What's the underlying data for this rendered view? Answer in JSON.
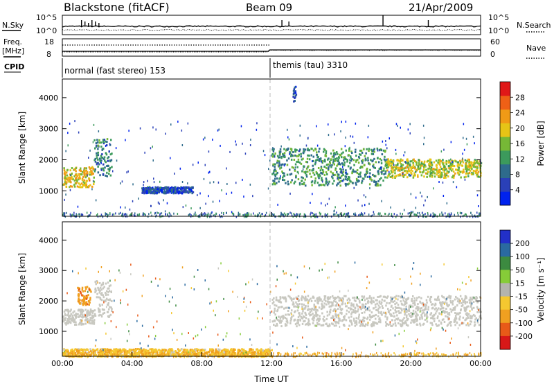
{
  "header": {
    "title": "Blackstone (fitACF)",
    "beam": "Beam 09",
    "date": "21/Apr/2009"
  },
  "labels": {
    "nsky": "N.Sky",
    "nsearch": "N.Search",
    "freq": "Freq.",
    "freq_unit": "[MHz]",
    "nave": "Nave",
    "cpid": "CPID"
  },
  "cpid_segments": [
    {
      "label": "normal (fast stereo) 153",
      "start_h": 0,
      "end_h": 11.9
    },
    {
      "label": "themis (tau) 3310",
      "start_h": 11.9,
      "end_h": 24
    }
  ],
  "noise_panel": {
    "left_ticks": [
      "10^5",
      "10^0"
    ],
    "right_ticks": [
      "10^5",
      "10^0"
    ]
  },
  "freq_panel": {
    "left_ticks": [
      "18",
      "8"
    ],
    "right_ticks": [
      "60",
      "0"
    ]
  },
  "colors": {
    "power_scale": [
      "#0022ee",
      "#2a40b8",
      "#2e6b8c",
      "#3c9a5c",
      "#76b836",
      "#e6c416",
      "#f09a16",
      "#ee6016",
      "#e01818"
    ],
    "velocity_scale": [
      "#2230c8",
      "#2a6aa0",
      "#3c8a40",
      "#86cc38",
      "#c8c8c0",
      "#f5c830",
      "#f0a020",
      "#e85a18",
      "#d81818"
    ],
    "ground_scatter": "#c8c8c0",
    "ground_scatter_colorbar": "#b4b4ae"
  },
  "chart_data": [
    {
      "type": "heatmap",
      "name": "Power",
      "xlabel": "",
      "ylabel": "Slant Range [km]",
      "xlim": [
        0,
        24
      ],
      "ylim": [
        180,
        4600
      ],
      "yticks": [
        "1000",
        "2000",
        "3000",
        "4000"
      ],
      "colorbar": {
        "label": "Power [dB]",
        "range": [
          0,
          32
        ],
        "ticks": [
          "4",
          "8",
          "12",
          "16",
          "20",
          "24",
          "28"
        ]
      },
      "features": [
        {
          "t_start_h": 0.0,
          "t_end_h": 1.8,
          "range_km": [
            1150,
            1800
          ],
          "value_db": 20
        },
        {
          "t_start_h": 1.8,
          "t_end_h": 2.8,
          "range_km": [
            1500,
            2700
          ],
          "value_db": 10
        },
        {
          "t_start_h": 4.5,
          "t_end_h": 7.5,
          "range_km": [
            950,
            1150
          ],
          "value_db": 6
        },
        {
          "t_start_h": 12.0,
          "t_end_h": 18.5,
          "range_km": [
            1200,
            2400
          ],
          "value_db": 12
        },
        {
          "t_start_h": 18.5,
          "t_end_h": 24.0,
          "range_km": [
            1450,
            2050
          ],
          "value_db": 18
        },
        {
          "t_start_h": 13.2,
          "t_end_h": 13.4,
          "range_km": [
            3900,
            4400
          ],
          "value_db": 6
        }
      ]
    },
    {
      "type": "heatmap",
      "name": "Velocity",
      "xlabel": "Time UT",
      "ylabel": "Slant Range [km]",
      "xlim": [
        0,
        24
      ],
      "ylim": [
        180,
        4600
      ],
      "yticks": [
        "1000",
        "2000",
        "3000",
        "4000"
      ],
      "xticks": [
        "00:00",
        "04:00",
        "08:00",
        "12:00",
        "16:00",
        "20:00",
        "00:00"
      ],
      "colorbar": {
        "label": "Velocity [m s⁻¹]",
        "range": [
          -250,
          250
        ],
        "ticks": [
          "200",
          "100",
          "50",
          "15",
          "-15",
          "-50",
          "-100",
          "-200"
        ]
      },
      "features": [
        {
          "t_start_h": 0.0,
          "t_end_h": 1.8,
          "range_km": [
            1250,
            1750
          ],
          "ground_scatter": true
        },
        {
          "t_start_h": 0.8,
          "t_end_h": 1.6,
          "range_km": [
            1900,
            2500
          ],
          "value_ms": -80
        },
        {
          "t_start_h": 1.8,
          "t_end_h": 2.8,
          "range_km": [
            1500,
            2700
          ],
          "ground_scatter": true
        },
        {
          "t_start_h": 12.0,
          "t_end_h": 24.0,
          "range_km": [
            1200,
            2200
          ],
          "ground_scatter": true
        },
        {
          "t_start_h": 0.0,
          "t_end_h": 12.0,
          "range_km": [
            200,
            450
          ],
          "value_ms": -40
        }
      ]
    }
  ]
}
